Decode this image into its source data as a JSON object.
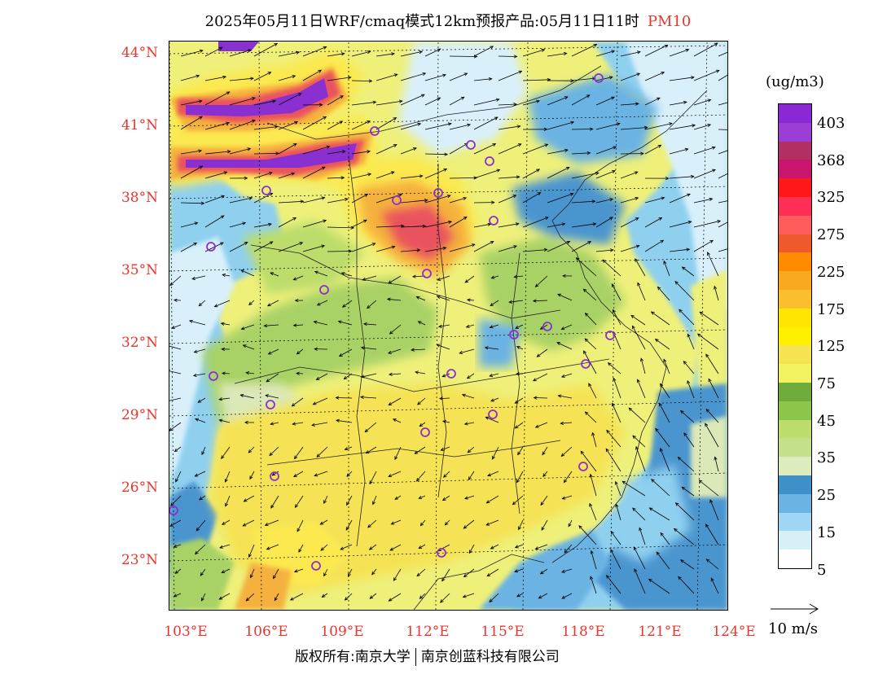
{
  "title": {
    "text": "2025年05月11日WRF/cmaq模式12km预报产品:05月11日11时",
    "pollutant": "PM10"
  },
  "map": {
    "lat_labels": [
      "44°N",
      "41°N",
      "38°N",
      "35°N",
      "32°N",
      "29°N",
      "26°N",
      "23°N"
    ],
    "lon_labels": [
      "103°E",
      "106°E",
      "109°E",
      "112°E",
      "115°E",
      "118°E",
      "121°E",
      "124°E"
    ],
    "colors": {
      "very_low": "#d9f0fb",
      "low": "#8fd0ef",
      "blue": "#4b95cf",
      "pale_green": "#dbe8b8",
      "green": "#a9d266",
      "yellow_green": "#e9f06a",
      "yellow": "#fbe94f",
      "orange": "#f5b13c",
      "red": "#e9535e",
      "purple": "#8a2fd0",
      "site_marker": "#8a2fd0",
      "label_red": "#e8352e"
    }
  },
  "legend": {
    "unit": "(ug/m3)",
    "levels": [
      "403",
      "368",
      "325",
      "275",
      "225",
      "175",
      "125",
      "75",
      "45",
      "35",
      "25",
      "15",
      "5"
    ],
    "swatches": [
      "#8b28d6",
      "#9a3ed6",
      "#b13064",
      "#c8166f",
      "#ff1818",
      "#ff2e54",
      "#ff5c5c",
      "#ee5a2c",
      "#ff8c00",
      "#f9a91e",
      "#fbbe2c",
      "#ffe600",
      "#fff000",
      "#f5e354",
      "#f2f260",
      "#6fab3a",
      "#8cc54a",
      "#bcdd6c",
      "#c5e08b",
      "#ddecbf",
      "#3f8fc9",
      "#6bb3e2",
      "#9fd6f4",
      "#d6eff9",
      "#ffffff"
    ]
  },
  "wind": {
    "scale_label": "10 m/s"
  },
  "footer": {
    "copyright_label": "版权所有:",
    "org1": "南京大学",
    "org2": "南京创蓝科技有限公司"
  }
}
